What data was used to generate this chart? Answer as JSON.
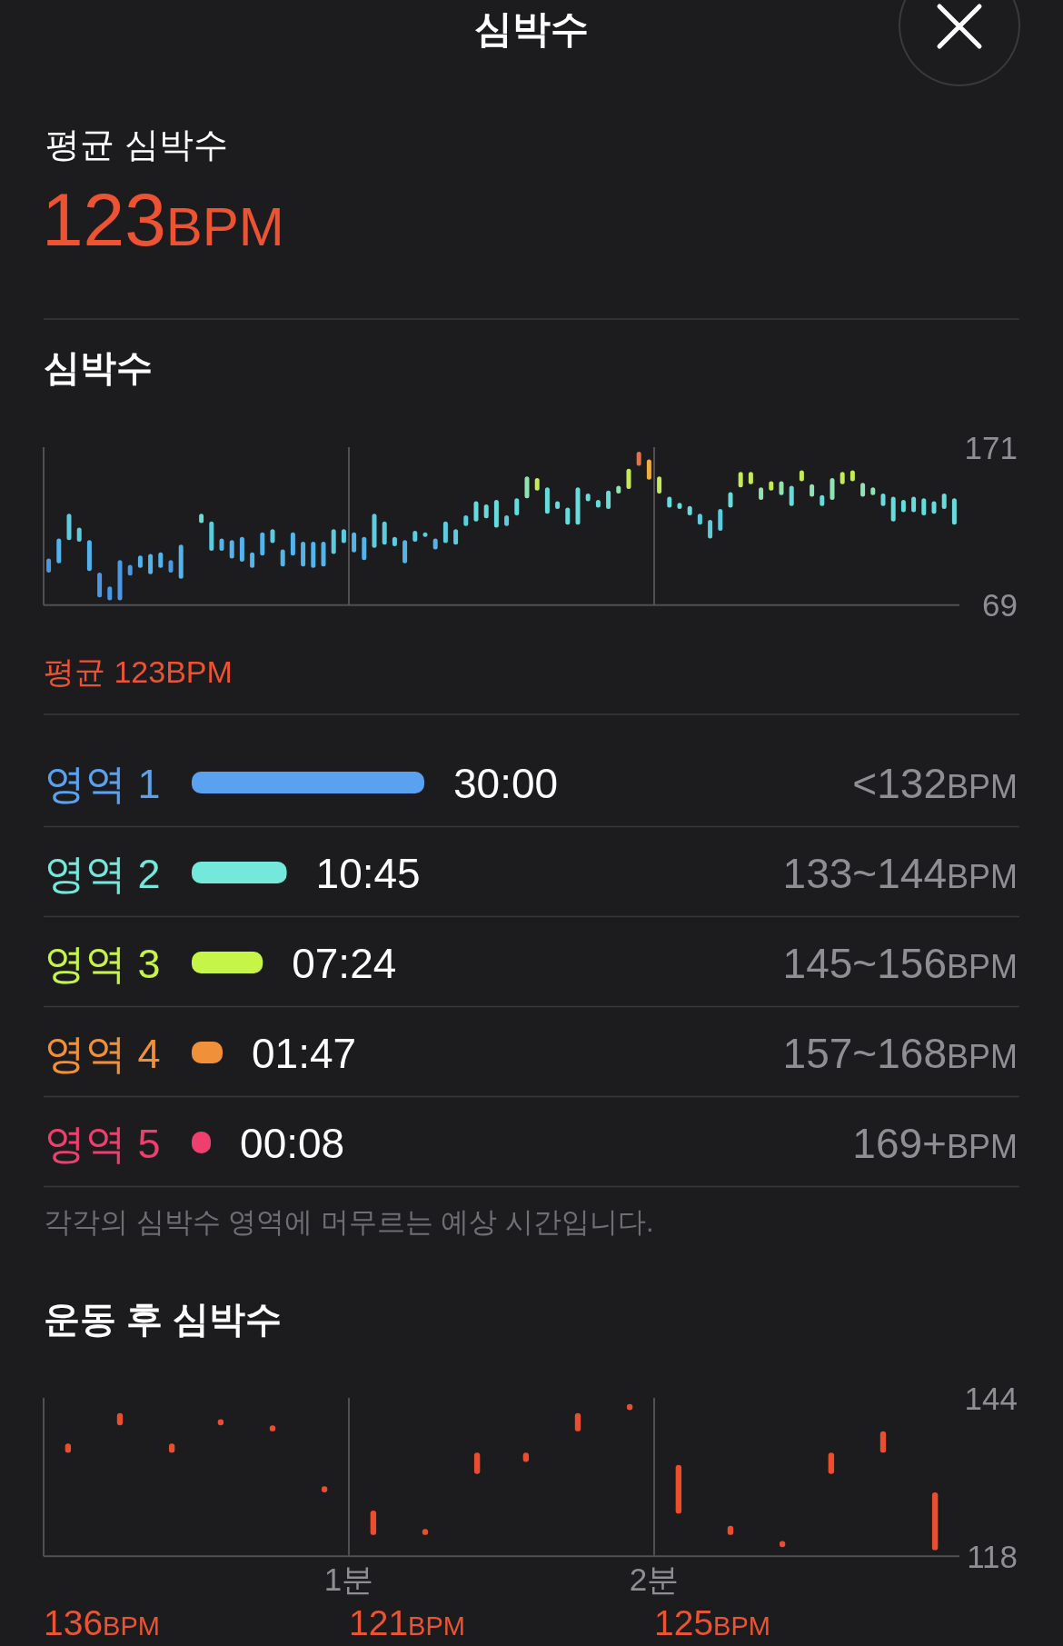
{
  "chart_data": [
    {
      "type": "other",
      "title": "심박수",
      "subtitle": "평균 심박수",
      "annotations": [
        "123BPM"
      ]
    },
    {
      "type": "bar",
      "title": "심박수",
      "categories": [
        null,
        null,
        null,
        null,
        null,
        null,
        null,
        null,
        null,
        null,
        null,
        null,
        null,
        null,
        null,
        null,
        null,
        null,
        null,
        null,
        null,
        null,
        null,
        null,
        null,
        null,
        null,
        null,
        null,
        null,
        null,
        null,
        null,
        null,
        null,
        null,
        null,
        null,
        null,
        null,
        null,
        null,
        null,
        null,
        null,
        null,
        null,
        null,
        null,
        null,
        null,
        null,
        null,
        null,
        null,
        null,
        null,
        null,
        null,
        null,
        null,
        null,
        null,
        null,
        null,
        null,
        null,
        null,
        null,
        null,
        null,
        null,
        null,
        null,
        null,
        null,
        null,
        null,
        null,
        null,
        null,
        null,
        null,
        null,
        null,
        null,
        null,
        null,
        null,
        null
      ],
      "base": [
        90,
        96,
        111,
        110,
        91,
        74,
        72,
        72,
        88,
        93,
        89,
        93,
        90,
        86,
        null,
        122,
        104,
        104,
        99,
        97,
        93,
        101,
        109,
        94,
        101,
        94,
        93,
        94,
        102,
        109,
        103,
        98,
        106,
        108,
        107,
        96,
        110,
        113,
        105,
        109,
        108,
        120,
        123,
        125,
        119,
        120,
        127,
        138,
        143,
        128,
        131,
        121,
        121,
        136,
        132,
        131,
        141,
        144,
        159,
        150,
        141,
        132,
        131,
        127,
        121,
        112,
        117,
        132,
        145,
        147,
        137,
        143,
        140,
        133,
        149,
        139,
        133,
        137,
        147,
        149,
        139,
        140,
        133,
        123,
        129,
        129,
        127,
        128,
        131,
        121
      ],
      "values": [
        9,
        16,
        17,
        9,
        20,
        16,
        9,
        26,
        7,
        8,
        13,
        10,
        8,
        22,
        null,
        6,
        19,
        8,
        12,
        16,
        10,
        15,
        9,
        11,
        15,
        16,
        17,
        16,
        16,
        9,
        13,
        15,
        22,
        15,
        6,
        15,
        7,
        3,
        7,
        14,
        10,
        7,
        13,
        9,
        18,
        7,
        11,
        14,
        8,
        17,
        5,
        11,
        24,
        5,
        5,
        12,
        5,
        13,
        9,
        13,
        11,
        7,
        4,
        6,
        7,
        12,
        14,
        10,
        10,
        8,
        8,
        6,
        9,
        13,
        7,
        8,
        7,
        14,
        8,
        7,
        9,
        5,
        8,
        16,
        8,
        10,
        11,
        8,
        10,
        17
      ],
      "colors": [
        "#4a98e6",
        "#52b4ea",
        "#5cccdf",
        "#5cccdf",
        "#52b4ea",
        "#4a98e6",
        "#4a98e6",
        "#4a98e6",
        "#4a98e6",
        "#52b4ea",
        "#52b4ea",
        "#52b4ea",
        "#4a98e6",
        "#52b4ea",
        null,
        "#66dcdc",
        "#5cccdf",
        "#52b4ea",
        "#52b4ea",
        "#52b4ea",
        "#52b4ea",
        "#52b4ea",
        "#5cccdf",
        "#52b4ea",
        "#52b4ea",
        "#52b4ea",
        "#52b4ea",
        "#52b4ea",
        "#5cccdf",
        "#5cccdf",
        "#52b4ea",
        "#52b4ea",
        "#5cccdf",
        "#5cccdf",
        "#5cccdf",
        "#52b4ea",
        "#5cccdf",
        "#5cccdf",
        "#52b4ea",
        "#5cccdf",
        "#5cccdf",
        "#5cccdf",
        "#66dcdc",
        "#66dcdc",
        "#66dcdc",
        "#5cccdf",
        "#66dcdc",
        "#8ee4b0",
        "#c4ea55",
        "#66dcdc",
        "#66dcdc",
        "#66dcdc",
        "#66dcdc",
        "#66dcdc",
        "#66dcdc",
        "#66dcdc",
        "#8ee4b0",
        "#c4ea55",
        "#ec6e44",
        "#eeb03c",
        "#c4ea55",
        "#66dcdc",
        "#66dcdc",
        "#66dcdc",
        "#5cccdf",
        "#5cccdf",
        "#5cccdf",
        "#66dcdc",
        "#c4ea55",
        "#c4ea55",
        "#8ee4b0",
        "#c4ea55",
        "#8ee4b0",
        "#66dcdc",
        "#c4ea55",
        "#8ee4b0",
        "#66dcdc",
        "#8ee4b0",
        "#c4ea55",
        "#c4ea55",
        "#8ee4b0",
        "#8ee4b0",
        "#66dcdc",
        "#66dcdc",
        "#66dcdc",
        "#66dcdc",
        "#66dcdc",
        "#66dcdc",
        "#66dcdc",
        "#66dcdc"
      ],
      "ylim": [
        69,
        171
      ],
      "yticks": [
        69,
        171
      ],
      "annotations": [
        "평균 123BPM"
      ]
    },
    {
      "type": "bar",
      "orientation": "horizontal",
      "categories": [
        "영역 1",
        "영역 2",
        "영역 3",
        "영역 4",
        "영역 5"
      ],
      "values": [
        1800,
        645,
        444,
        107,
        8
      ],
      "value_labels": [
        "30:00",
        "10:45",
        "07:24",
        "01:47",
        "00:08"
      ],
      "colors": [
        "#5aa2f0",
        "#74e8da",
        "#c6f548",
        "#f0913a",
        "#ef3f6f"
      ],
      "y2_categories": [
        "<132BPM",
        "133~144BPM",
        "145~156BPM",
        "157~168BPM",
        "169+BPM"
      ],
      "annotations": [
        "각각의 심박수 영역에 머무르는 예상 시간입니다."
      ]
    },
    {
      "type": "bar",
      "title": "운동 후 심박수",
      "x": [
        0.08,
        0.25,
        0.42,
        0.58,
        0.75,
        0.92,
        1.08,
        1.25,
        1.42,
        1.58,
        1.75,
        1.92,
        2.08,
        2.25,
        2.42,
        2.58,
        2.75,
        2.92
      ],
      "base": [
        135,
        139.5,
        135,
        139.5,
        138.5,
        128.5,
        121.5,
        121.5,
        131.5,
        133.5,
        138.5,
        142,
        125,
        121.5,
        119.5,
        131.5,
        135,
        119
      ],
      "values": [
        1.5,
        2,
        1.5,
        1,
        1,
        1,
        4,
        1,
        3.5,
        1.5,
        3,
        1,
        8,
        1.5,
        1,
        3.5,
        3.5,
        9.5
      ],
      "color": "#eb4e2f",
      "xlim": [
        0,
        3
      ],
      "xticks": [
        {
          "value": 1,
          "label": "1분"
        },
        {
          "value": 2,
          "label": "2분"
        }
      ],
      "ylim": [
        118,
        144
      ],
      "yticks": [
        118,
        144
      ],
      "grid": "x",
      "annotations": [
        "136BPM",
        "121BPM",
        "125BPM"
      ]
    }
  ]
}
